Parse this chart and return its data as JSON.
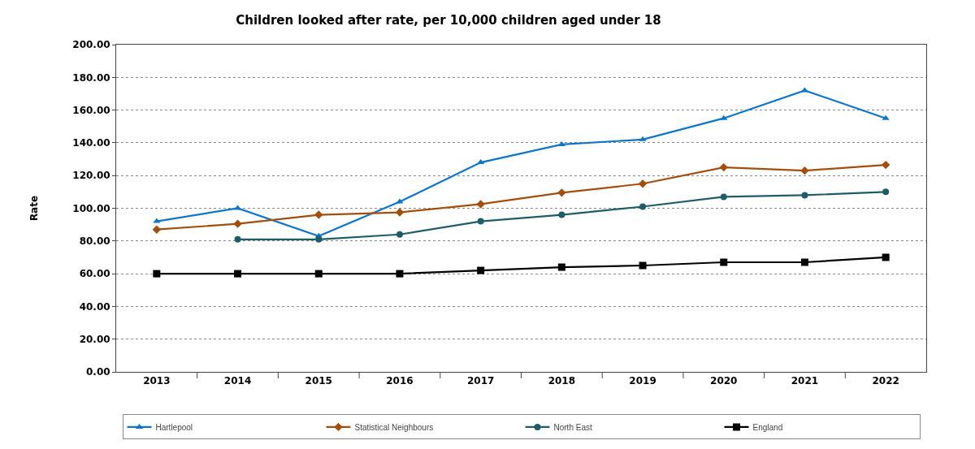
{
  "chart_data": {
    "type": "line",
    "title": "Children looked after rate, per 10,000 children aged under 18",
    "ylabel": "Rate",
    "categories": [
      "2013",
      "2014",
      "2015",
      "2016",
      "2017",
      "2018",
      "2019",
      "2020",
      "2021",
      "2022"
    ],
    "series": [
      {
        "name": "Hartlepool",
        "color": "#0f75c8",
        "marker": "triangle",
        "values": [
          92,
          100,
          83,
          104,
          128,
          139,
          142,
          155,
          172,
          155
        ]
      },
      {
        "name": "Statistical Neighbours",
        "color": "#a24e0c",
        "marker": "diamond",
        "values": [
          87,
          90.5,
          96,
          97.5,
          102.5,
          109.5,
          115,
          125,
          123,
          126.5
        ]
      },
      {
        "name": "North East",
        "color": "#205c68",
        "marker": "circle",
        "values": [
          null,
          81,
          81,
          84,
          92,
          96,
          101,
          107,
          108,
          110
        ]
      },
      {
        "name": "England",
        "color": "#000000",
        "marker": "square",
        "values": [
          60,
          60,
          60,
          60,
          62,
          64,
          65,
          67,
          67,
          70
        ]
      }
    ],
    "ylim": [
      0,
      200
    ],
    "yticks": [
      {
        "value": 0,
        "label": "0.00"
      },
      {
        "value": 20,
        "label": "20.00"
      },
      {
        "value": 40,
        "label": "40.00"
      },
      {
        "value": 60,
        "label": "60.00"
      },
      {
        "value": 80,
        "label": "80.00"
      },
      {
        "value": 100,
        "label": "100.00"
      },
      {
        "value": 120,
        "label": "120.00"
      },
      {
        "value": 140,
        "label": "140.00"
      },
      {
        "value": 160,
        "label": "160.00"
      },
      {
        "value": 180,
        "label": "180.00"
      },
      {
        "value": 200,
        "label": "200.00"
      }
    ],
    "grid": "y",
    "legend": "bottom",
    "line_style": "solid"
  }
}
